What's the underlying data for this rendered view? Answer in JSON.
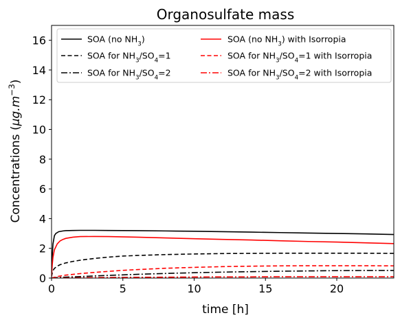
{
  "chart_data": {
    "type": "line",
    "title": "Organosulfate mass",
    "xlabel": "time [h]",
    "ylabel": "Concentrations (μg.m⁻³)",
    "xlim": [
      0,
      24
    ],
    "ylim": [
      0,
      17
    ],
    "x_ticks": [
      "0",
      "5",
      "10",
      "15",
      "20"
    ],
    "y_ticks": [
      "0",
      "2",
      "4",
      "6",
      "8",
      "10",
      "12",
      "14",
      "16"
    ],
    "grid": false,
    "legend_placement": "top",
    "series": [
      {
        "name": "SOA (no NH3)",
        "name_html": "SOA (no NH<tspan baseline-shift='sub' font-size='70%'>3</tspan>)",
        "color": "#000000",
        "dash": "solid",
        "x": [
          0,
          0.05,
          0.1,
          0.2,
          0.3,
          0.5,
          0.8,
          1,
          1.5,
          2,
          3,
          4,
          6,
          8,
          10,
          12,
          14,
          16,
          18,
          20,
          22,
          24
        ],
        "y": [
          0.2,
          1.5,
          2.3,
          2.85,
          3.0,
          3.12,
          3.17,
          3.19,
          3.2,
          3.21,
          3.21,
          3.2,
          3.19,
          3.17,
          3.15,
          3.12,
          3.09,
          3.06,
          3.03,
          3.0,
          2.97,
          2.93
        ]
      },
      {
        "name": "SOA for NH3/SO4=1",
        "name_html": "SOA for NH<tspan baseline-shift='sub' font-size='70%'>3</tspan>/SO<tspan baseline-shift='sub' font-size='70%'>4</tspan>=1",
        "color": "#000000",
        "dash": "dashed",
        "x": [
          0,
          0.05,
          0.1,
          0.2,
          0.4,
          0.6,
          1,
          1.5,
          2,
          3,
          4,
          5,
          6,
          8,
          10,
          12,
          14,
          16,
          18,
          20,
          22,
          24
        ],
        "y": [
          0.1,
          0.35,
          0.5,
          0.65,
          0.8,
          0.9,
          1.02,
          1.12,
          1.2,
          1.32,
          1.41,
          1.48,
          1.52,
          1.58,
          1.62,
          1.65,
          1.66,
          1.67,
          1.67,
          1.67,
          1.67,
          1.66
        ]
      },
      {
        "name": "SOA for NH3/SO4=2",
        "name_html": "SOA for NH<tspan baseline-shift='sub' font-size='70%'>3</tspan>/SO<tspan baseline-shift='sub' font-size='70%'>4</tspan>=2",
        "color": "#000000",
        "dash": "dashdot",
        "x": [
          0,
          0.2,
          0.5,
          1,
          2,
          3,
          4,
          6,
          8,
          10,
          12,
          14,
          16,
          18,
          20,
          22,
          24
        ],
        "y": [
          0.0,
          0.02,
          0.04,
          0.06,
          0.1,
          0.14,
          0.18,
          0.25,
          0.31,
          0.36,
          0.4,
          0.43,
          0.46,
          0.48,
          0.5,
          0.51,
          0.51
        ]
      },
      {
        "name": "SOA (no NH3) with Isorropia",
        "name_html": "SOA (no NH<tspan baseline-shift='sub' font-size='70%'>3</tspan>) with Isorropia",
        "color": "#ff0000",
        "dash": "solid",
        "x": [
          0,
          0.05,
          0.1,
          0.2,
          0.4,
          0.6,
          0.8,
          1,
          1.5,
          2,
          3,
          4,
          6,
          8,
          10,
          12,
          14,
          16,
          18,
          20,
          22,
          24
        ],
        "y": [
          0.1,
          0.9,
          1.4,
          1.9,
          2.3,
          2.5,
          2.6,
          2.67,
          2.75,
          2.79,
          2.8,
          2.79,
          2.75,
          2.7,
          2.65,
          2.6,
          2.56,
          2.51,
          2.46,
          2.42,
          2.37,
          2.32
        ]
      },
      {
        "name": "SOA for NH3/SO4=1 with Isorropia",
        "name_html": "SOA for NH<tspan baseline-shift='sub' font-size='70%'>3</tspan>/SO<tspan baseline-shift='sub' font-size='70%'>4</tspan>=1 with Isorropia",
        "color": "#ff0000",
        "dash": "dashed",
        "x": [
          0,
          0.2,
          0.5,
          1,
          2,
          3,
          4,
          5,
          6,
          8,
          10,
          12,
          14,
          16,
          18,
          20,
          22,
          24
        ],
        "y": [
          0.0,
          0.05,
          0.12,
          0.2,
          0.3,
          0.38,
          0.45,
          0.52,
          0.57,
          0.66,
          0.72,
          0.77,
          0.8,
          0.82,
          0.83,
          0.83,
          0.83,
          0.82
        ]
      },
      {
        "name": "SOA for NH3/SO4=2 with Isorropia",
        "name_html": "SOA for NH<tspan baseline-shift='sub' font-size='70%'>3</tspan>/SO<tspan baseline-shift='sub' font-size='70%'>4</tspan>=2 with Isorropia",
        "color": "#ff0000",
        "dash": "dashdot",
        "x": [
          0,
          1,
          2,
          4,
          6,
          8,
          10,
          12,
          14,
          16,
          18,
          20,
          22,
          24
        ],
        "y": [
          0.0,
          0.01,
          0.02,
          0.04,
          0.05,
          0.06,
          0.07,
          0.08,
          0.08,
          0.09,
          0.09,
          0.09,
          0.09,
          0.09
        ]
      }
    ]
  }
}
